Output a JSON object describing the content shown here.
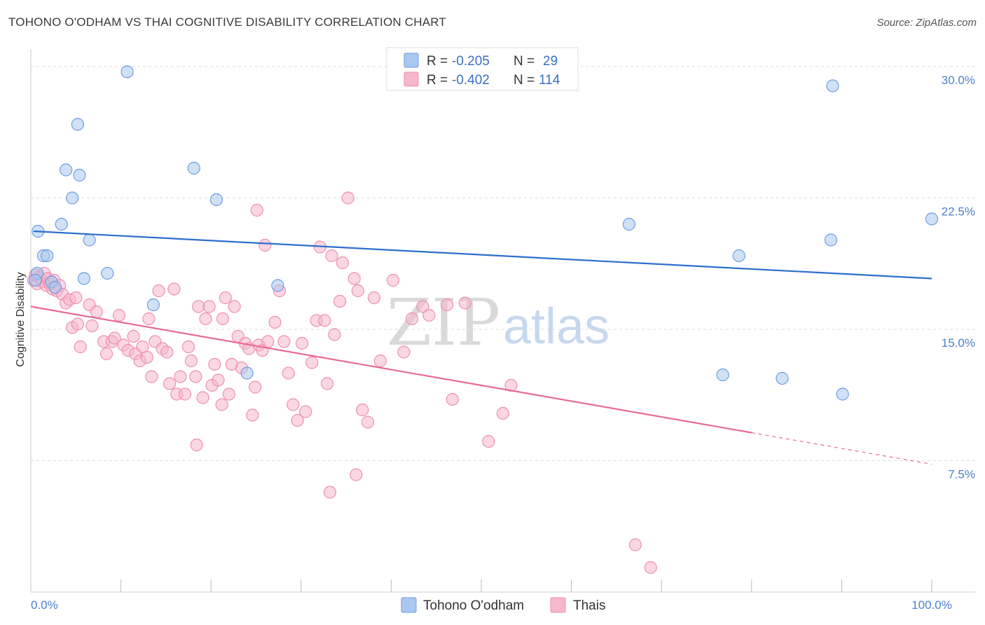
{
  "header": {
    "title": "TOHONO O'ODHAM VS THAI COGNITIVE DISABILITY CORRELATION CHART",
    "source": "Source: ZipAtlas.com"
  },
  "watermark": {
    "zip": "ZIP",
    "atlas": "atlas"
  },
  "colors": {
    "tohono_fill": "#a9c8f0",
    "tohono_stroke": "#6d9be0",
    "tohono_line": "#2c6fcc",
    "thai_fill": "#f6b6cb",
    "thai_stroke": "#ee8fb0",
    "thai_line": "#e86a97",
    "grid": "#dddddd",
    "axis_label": "#4a7fcf"
  },
  "legend": {
    "rows": [
      {
        "r_label": "R = ",
        "r_value": "-0.205",
        "n_label": "N = ",
        "n_value": "29"
      },
      {
        "r_label": "R = ",
        "r_value": "-0.402",
        "n_label": "N = ",
        "n_value": "114"
      }
    ]
  },
  "bottom_legend": {
    "tohono": "Tohono O'odham",
    "thai": "Thais"
  },
  "chart_data": {
    "type": "scatter",
    "title": "TOHONO O'ODHAM VS THAI COGNITIVE DISABILITY CORRELATION CHART",
    "xlabel": "",
    "ylabel": "Cognitive Disability",
    "xlim": [
      0,
      100
    ],
    "ylim": [
      0,
      31
    ],
    "x_tick_labels": [
      {
        "value": 0,
        "label": "0.0%"
      },
      {
        "value": 100,
        "label": "100.0%"
      }
    ],
    "x_minor_ticks": [
      10,
      20,
      30,
      40,
      50,
      60,
      70,
      80,
      90,
      100
    ],
    "y_ticks": [
      {
        "value": 7.5,
        "label": "7.5%"
      },
      {
        "value": 15.0,
        "label": "15.0%"
      },
      {
        "value": 22.5,
        "label": "22.5%"
      },
      {
        "value": 30.0,
        "label": "30.0%"
      }
    ],
    "series": [
      {
        "name": "Tohono O'odham",
        "r": -0.205,
        "n": 29,
        "trend": {
          "x0": 0.3,
          "y0": 20.6,
          "x1": 100,
          "y1": 17.9
        },
        "points": [
          [
            0.7,
            18.2
          ],
          [
            0.8,
            20.6
          ],
          [
            1.4,
            19.2
          ],
          [
            1.8,
            19.2
          ],
          [
            2.3,
            17.7
          ],
          [
            2.7,
            17.4
          ],
          [
            3.4,
            21.0
          ],
          [
            3.9,
            24.1
          ],
          [
            4.6,
            22.5
          ],
          [
            5.2,
            26.7
          ],
          [
            5.4,
            23.8
          ],
          [
            5.9,
            17.9
          ],
          [
            6.5,
            20.1
          ],
          [
            8.5,
            18.2
          ],
          [
            10.7,
            29.7
          ],
          [
            13.6,
            16.4
          ],
          [
            18.1,
            24.2
          ],
          [
            20.6,
            22.4
          ],
          [
            24.0,
            12.5
          ],
          [
            27.4,
            17.5
          ],
          [
            66.4,
            21.0
          ],
          [
            76.8,
            12.4
          ],
          [
            78.6,
            19.2
          ],
          [
            83.4,
            12.2
          ],
          [
            88.8,
            20.1
          ],
          [
            89.0,
            28.9
          ],
          [
            90.1,
            11.3
          ],
          [
            100.0,
            21.3
          ],
          [
            0.5,
            17.8
          ]
        ]
      },
      {
        "name": "Thais",
        "r": -0.402,
        "n": 114,
        "trend": {
          "x0": 0.0,
          "y0": 16.3,
          "x1": 80.0,
          "y1": 9.1
        },
        "trend_dashed": {
          "x0": 80.0,
          "y0": 9.1,
          "x1": 100.0,
          "y1": 7.3
        },
        "points": [
          [
            0.3,
            17.8
          ],
          [
            0.5,
            18.1
          ],
          [
            0.7,
            17.6
          ],
          [
            0.9,
            18.0
          ],
          [
            1.1,
            17.9
          ],
          [
            1.3,
            17.7
          ],
          [
            1.5,
            18.2
          ],
          [
            1.7,
            17.5
          ],
          [
            1.9,
            17.9
          ],
          [
            2.1,
            17.6
          ],
          [
            2.4,
            17.3
          ],
          [
            2.6,
            17.8
          ],
          [
            2.9,
            17.2
          ],
          [
            3.2,
            17.5
          ],
          [
            3.5,
            17.0
          ],
          [
            3.9,
            16.5
          ],
          [
            4.3,
            16.7
          ],
          [
            4.6,
            15.1
          ],
          [
            5.2,
            15.3
          ],
          [
            5.5,
            14.0
          ],
          [
            6.5,
            16.4
          ],
          [
            6.8,
            15.2
          ],
          [
            7.3,
            16.0
          ],
          [
            8.1,
            14.3
          ],
          [
            8.4,
            13.6
          ],
          [
            9.0,
            14.3
          ],
          [
            9.3,
            14.5
          ],
          [
            9.8,
            15.8
          ],
          [
            10.3,
            14.1
          ],
          [
            10.8,
            13.8
          ],
          [
            11.4,
            14.6
          ],
          [
            11.6,
            13.6
          ],
          [
            12.1,
            13.2
          ],
          [
            12.4,
            14.0
          ],
          [
            12.9,
            13.4
          ],
          [
            13.1,
            15.6
          ],
          [
            13.4,
            12.3
          ],
          [
            13.8,
            14.3
          ],
          [
            14.2,
            17.2
          ],
          [
            14.6,
            13.9
          ],
          [
            15.1,
            13.7
          ],
          [
            15.4,
            11.9
          ],
          [
            15.9,
            17.3
          ],
          [
            16.2,
            11.3
          ],
          [
            16.6,
            12.3
          ],
          [
            17.1,
            11.3
          ],
          [
            17.5,
            14.0
          ],
          [
            17.8,
            13.2
          ],
          [
            18.3,
            12.3
          ],
          [
            18.6,
            16.3
          ],
          [
            19.1,
            11.1
          ],
          [
            19.4,
            15.6
          ],
          [
            19.8,
            16.3
          ],
          [
            20.1,
            11.8
          ],
          [
            20.4,
            13.0
          ],
          [
            20.8,
            12.1
          ],
          [
            21.3,
            15.6
          ],
          [
            21.6,
            16.8
          ],
          [
            22.0,
            11.3
          ],
          [
            22.3,
            13.0
          ],
          [
            22.6,
            16.3
          ],
          [
            23.0,
            14.6
          ],
          [
            23.4,
            12.8
          ],
          [
            23.8,
            14.2
          ],
          [
            24.2,
            13.9
          ],
          [
            24.6,
            10.1
          ],
          [
            24.9,
            11.7
          ],
          [
            25.3,
            14.1
          ],
          [
            25.7,
            13.8
          ],
          [
            26.0,
            19.8
          ],
          [
            26.3,
            14.3
          ],
          [
            27.1,
            15.4
          ],
          [
            27.6,
            17.2
          ],
          [
            28.1,
            14.3
          ],
          [
            28.6,
            12.5
          ],
          [
            29.1,
            10.7
          ],
          [
            29.6,
            9.8
          ],
          [
            30.1,
            14.2
          ],
          [
            30.5,
            10.3
          ],
          [
            31.2,
            13.1
          ],
          [
            31.7,
            15.5
          ],
          [
            32.1,
            19.7
          ],
          [
            32.6,
            15.5
          ],
          [
            32.9,
            11.9
          ],
          [
            33.4,
            19.2
          ],
          [
            33.7,
            14.7
          ],
          [
            34.3,
            16.6
          ],
          [
            34.6,
            18.8
          ],
          [
            35.2,
            22.5
          ],
          [
            35.9,
            17.9
          ],
          [
            36.3,
            17.2
          ],
          [
            36.8,
            10.4
          ],
          [
            37.4,
            9.7
          ],
          [
            38.1,
            16.8
          ],
          [
            38.8,
            13.2
          ],
          [
            40.2,
            17.8
          ],
          [
            41.4,
            13.7
          ],
          [
            42.3,
            15.6
          ],
          [
            43.5,
            16.3
          ],
          [
            44.2,
            15.8
          ],
          [
            46.2,
            16.4
          ],
          [
            46.8,
            11.0
          ],
          [
            48.2,
            16.5
          ],
          [
            50.8,
            8.6
          ],
          [
            52.4,
            10.2
          ],
          [
            53.3,
            11.8
          ],
          [
            67.1,
            2.7
          ],
          [
            68.8,
            1.4
          ],
          [
            25.1,
            21.8
          ],
          [
            18.4,
            8.4
          ],
          [
            33.2,
            5.7
          ],
          [
            36.1,
            6.7
          ],
          [
            21.2,
            10.7
          ],
          [
            5.0,
            16.8
          ]
        ]
      }
    ]
  }
}
